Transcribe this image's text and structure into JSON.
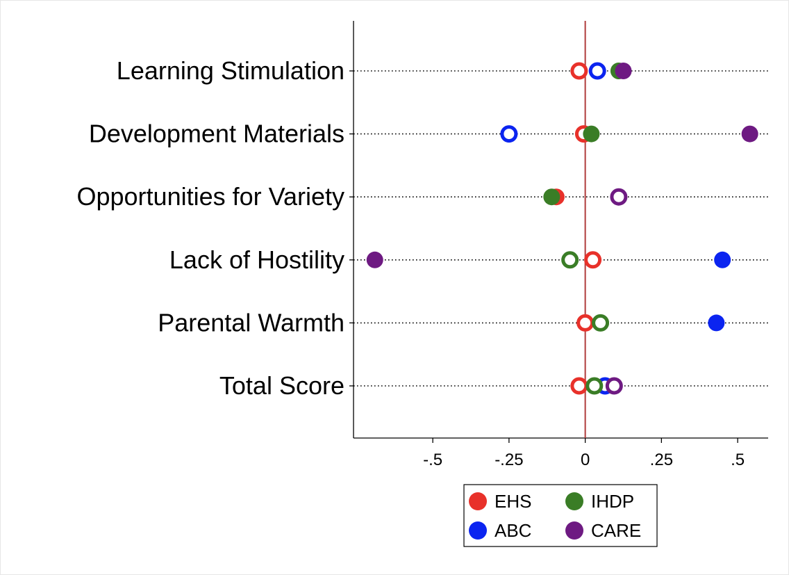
{
  "chart_data": {
    "type": "scatter",
    "categories": [
      "Learning Stimulation",
      "Development Materials",
      "Opportunities for Variety",
      "Lack of Hostility",
      "Parental Warmth",
      "Total Score"
    ],
    "x_ticks": [
      "-.5",
      "-.25",
      "0",
      ".25",
      ".5"
    ],
    "x_tick_values": [
      -0.5,
      -0.25,
      0,
      0.25,
      0.5
    ],
    "xlim": [
      -0.76,
      0.6
    ],
    "reference_line": 0,
    "legend_position": "bottom",
    "series": [
      {
        "name": "EHS",
        "color": "#e8312a",
        "values": [
          -0.02,
          -0.005,
          -0.095,
          0.025,
          0.0,
          -0.02
        ],
        "filled": [
          false,
          false,
          true,
          false,
          false,
          false
        ]
      },
      {
        "name": "ABC",
        "color": "#0b24f0",
        "values": [
          0.04,
          -0.25,
          null,
          0.45,
          0.43,
          0.065
        ],
        "filled": [
          false,
          false,
          false,
          true,
          true,
          false
        ]
      },
      {
        "name": "IHDP",
        "color": "#3a7d26",
        "values": [
          0.11,
          0.02,
          -0.11,
          -0.05,
          0.05,
          0.03
        ],
        "filled": [
          true,
          true,
          true,
          false,
          false,
          false
        ]
      },
      {
        "name": "CARE",
        "color": "#6e1a82",
        "values": [
          0.125,
          0.54,
          0.11,
          -0.69,
          null,
          0.095
        ],
        "filled": [
          true,
          true,
          false,
          true,
          false,
          false
        ]
      }
    ],
    "legend": [
      {
        "label": "EHS",
        "color": "#e8312a"
      },
      {
        "label": "IHDP",
        "color": "#3a7d26"
      },
      {
        "label": "ABC",
        "color": "#0b24f0"
      },
      {
        "label": "CARE",
        "color": "#6e1a82"
      }
    ]
  }
}
